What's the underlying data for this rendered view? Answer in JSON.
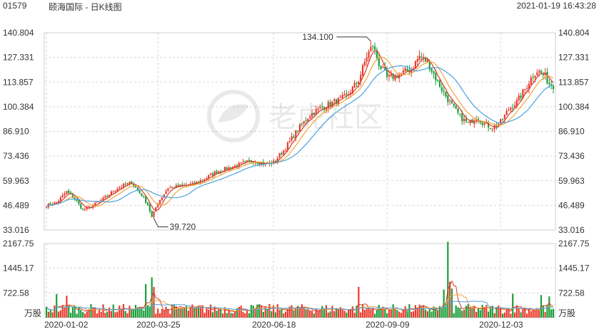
{
  "header": {
    "code": "01579",
    "name": "颐海国际 - 日K线图",
    "timestamp": "2021-01-19 16:43:28"
  },
  "watermark": "老虎社区",
  "volume_unit": "万股",
  "colors": {
    "up": "#e83a2c",
    "down": "#1b9e3a",
    "ma5": "#d93a2b",
    "ma10": "#f0a53c",
    "ma20": "#4aa3df",
    "grid": "#d9d9d9"
  },
  "chart_data": [
    {
      "type": "candlestick",
      "y_ticks": [
        "140.804",
        "127.331",
        "113.857",
        "100.384",
        "86.910",
        "73.436",
        "59.963",
        "46.489",
        "33.016"
      ],
      "ylim": [
        33.016,
        140.804
      ],
      "x_ticks": [
        "2020-01-02",
        "2020-03-25",
        "2020-06-18",
        "2020-09-09",
        "2020-12-03"
      ],
      "annotations": [
        {
          "label": "134.100",
          "kind": "high"
        },
        {
          "label": "39.720",
          "kind": "low"
        }
      ],
      "x_tick_index": [
        0,
        55,
        112,
        168,
        224
      ],
      "anchors": [
        [
          0,
          46.5
        ],
        [
          5,
          48
        ],
        [
          10,
          54
        ],
        [
          14,
          50
        ],
        [
          18,
          44
        ],
        [
          22,
          46
        ],
        [
          28,
          50
        ],
        [
          35,
          56
        ],
        [
          42,
          59
        ],
        [
          47,
          52
        ],
        [
          50,
          47
        ],
        [
          52,
          40
        ],
        [
          55,
          48
        ],
        [
          60,
          56
        ],
        [
          66,
          57
        ],
        [
          72,
          58
        ],
        [
          78,
          61
        ],
        [
          84,
          65
        ],
        [
          90,
          67
        ],
        [
          96,
          69
        ],
        [
          102,
          71
        ],
        [
          108,
          69
        ],
        [
          112,
          70
        ],
        [
          118,
          78
        ],
        [
          124,
          88
        ],
        [
          130,
          96
        ],
        [
          136,
          100
        ],
        [
          142,
          103
        ],
        [
          148,
          106
        ],
        [
          154,
          115
        ],
        [
          158,
          128
        ],
        [
          161,
          134
        ],
        [
          164,
          124
        ],
        [
          168,
          116
        ],
        [
          172,
          117
        ],
        [
          176,
          119
        ],
        [
          180,
          121
        ],
        [
          184,
          128
        ],
        [
          188,
          125
        ],
        [
          192,
          116
        ],
        [
          196,
          108
        ],
        [
          200,
          101
        ],
        [
          204,
          95
        ],
        [
          208,
          91
        ],
        [
          212,
          95
        ],
        [
          216,
          91
        ],
        [
          220,
          89
        ],
        [
          224,
          92
        ],
        [
          228,
          99
        ],
        [
          232,
          103
        ],
        [
          236,
          110
        ],
        [
          240,
          118
        ],
        [
          242,
          120
        ],
        [
          246,
          117
        ],
        [
          248,
          113
        ],
        [
          250,
          112
        ]
      ],
      "n": 251
    },
    {
      "type": "bar",
      "name": "volume",
      "y_ticks": [
        "2167.75",
        "1445.17",
        "722.58"
      ],
      "ylim": [
        0,
        2167.75
      ],
      "spikes": [
        [
          52,
          1180
        ],
        [
          49,
          980
        ],
        [
          53,
          900
        ],
        [
          154,
          900
        ],
        [
          198,
          2220
        ],
        [
          199,
          1050
        ],
        [
          200,
          850
        ],
        [
          196,
          820
        ],
        [
          230,
          700
        ],
        [
          244,
          660
        ],
        [
          248,
          620
        ],
        [
          5,
          690
        ],
        [
          10,
          640
        ]
      ],
      "base_level": 320
    }
  ]
}
